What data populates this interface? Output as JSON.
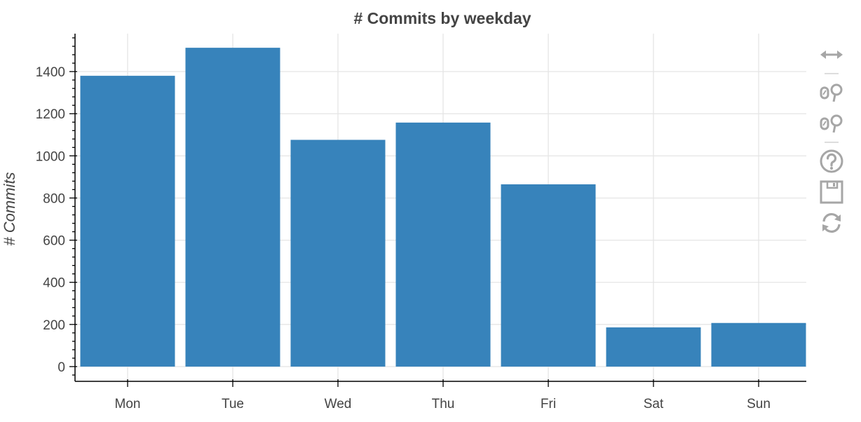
{
  "chart_data": {
    "type": "bar",
    "title": "# Commits by weekday",
    "xlabel": "",
    "ylabel": "# Commits",
    "categories": [
      "Mon",
      "Tue",
      "Wed",
      "Thu",
      "Fri",
      "Sat",
      "Sun"
    ],
    "values": [
      1380,
      1513,
      1076,
      1158,
      865,
      186,
      207
    ],
    "ylim": [
      -70,
      1580
    ],
    "yticks": [
      0,
      200,
      400,
      600,
      800,
      1000,
      1200,
      1400
    ],
    "ytick_labels": [
      "0",
      "200",
      "400",
      "600",
      "800",
      "1000",
      "1200",
      "1400"
    ],
    "grid": true,
    "bar_color": "#3783bb"
  },
  "toolbar": {
    "tools": [
      {
        "name": "pan-icon"
      },
      {
        "name": "box-zoom-icon"
      },
      {
        "name": "wheel-zoom-icon"
      },
      {
        "name": "help-icon"
      },
      {
        "name": "save-icon"
      },
      {
        "name": "reset-icon"
      }
    ],
    "icon_color": "#a6a6a6"
  }
}
